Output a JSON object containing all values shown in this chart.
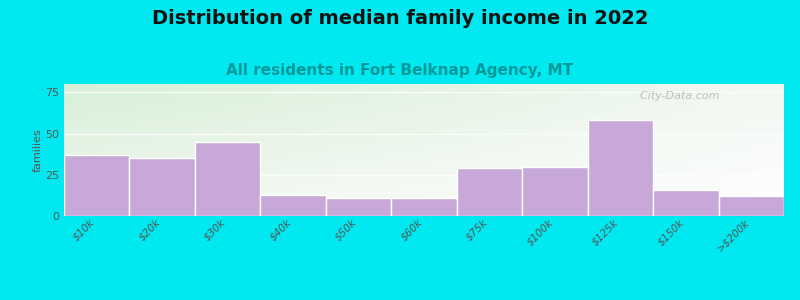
{
  "title": "Distribution of median family income in 2022",
  "subtitle": "All residents in Fort Belknap Agency, MT",
  "categories": [
    "$10k",
    "$20k",
    "$30k",
    "$40k",
    "$50k",
    "$60k",
    "$75k",
    "$100k",
    "$125k",
    "$150k",
    ">$200k"
  ],
  "values": [
    37,
    35,
    45,
    13,
    11,
    11,
    29,
    30,
    58,
    16,
    12
  ],
  "bar_color": "#c8a8d8",
  "bar_edge_color": "#b898c8",
  "ylabel": "families",
  "ylim": [
    0,
    80
  ],
  "yticks": [
    0,
    25,
    50,
    75
  ],
  "background_outer": "#00e8f0",
  "plot_bg_top_left": "#d8f0d8",
  "plot_bg_bottom_right": "#f8f8f8",
  "title_fontsize": 14,
  "subtitle_fontsize": 11,
  "subtitle_color": "#009999",
  "watermark_text": "  City-Data.com",
  "watermark_color": "#aaaaaa"
}
